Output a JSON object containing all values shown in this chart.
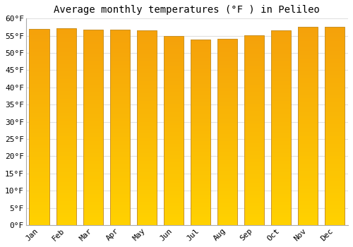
{
  "title": "Average monthly temperatures (°F ) in Pelileo",
  "months": [
    "Jan",
    "Feb",
    "Mar",
    "Apr",
    "May",
    "Jun",
    "Jul",
    "Aug",
    "Sep",
    "Oct",
    "Nov",
    "Dec"
  ],
  "values": [
    57.0,
    57.2,
    56.7,
    56.8,
    56.5,
    55.0,
    54.0,
    54.1,
    55.2,
    56.5,
    57.5,
    57.5
  ],
  "ylim": [
    0,
    60
  ],
  "yticks": [
    0,
    5,
    10,
    15,
    20,
    25,
    30,
    35,
    40,
    45,
    50,
    55,
    60
  ],
  "ytick_labels": [
    "0°F",
    "5°F",
    "10°F",
    "15°F",
    "20°F",
    "25°F",
    "30°F",
    "35°F",
    "40°F",
    "45°F",
    "50°F",
    "55°F",
    "60°F"
  ],
  "background_color": "#FFFFFF",
  "grid_color": "#E0E0E0",
  "title_fontsize": 10,
  "tick_fontsize": 8,
  "bar_color_bottom": "#FFCC00",
  "bar_color_top": "#F5A000",
  "bar_edge_color": "#C8922A",
  "bar_width": 0.75
}
